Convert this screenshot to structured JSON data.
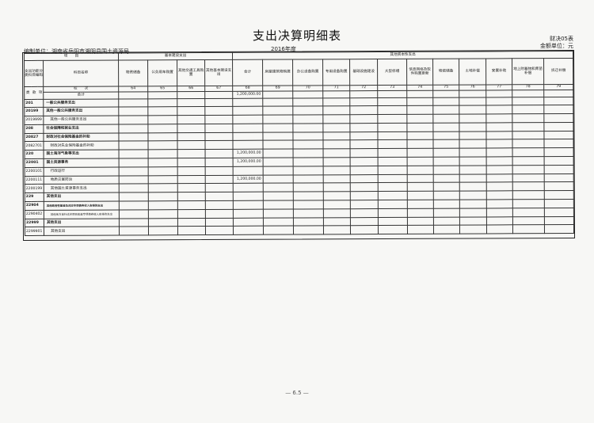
{
  "title": "支出决算明细表",
  "form_no": "财决05表",
  "unit": "金额单位：元",
  "org": "编制单位：湖南省岳阳市湘阴县国土资源局",
  "year": "2016年度",
  "page_number": "— 6.5 —",
  "header": {
    "item": "项　　目",
    "code_label": "支出功能分类科目编码",
    "name_label": "科目名称",
    "group_basic": "基本建设支出",
    "group_other": "其他资本性支出",
    "columns": [
      "物资储备",
      "公务用车购置",
      "其他交通工具购置",
      "其他基本建设支出",
      "合计",
      "房屋建筑物购建",
      "办公设备购置",
      "专用设备购置",
      "基础设施建设",
      "大型修缮",
      "信息网络及软件购置更新",
      "物资储备",
      "土地补偿",
      "安置补助",
      "地上附着物和青苗补偿",
      "拆迁补偿"
    ],
    "col_numbers": [
      "64",
      "65",
      "66",
      "67",
      "68",
      "69",
      "70",
      "71",
      "72",
      "73",
      "74",
      "75",
      "76",
      "77",
      "78",
      "79"
    ],
    "class_labels": [
      "类",
      "款",
      "项"
    ],
    "row_no_label": "栏　　次",
    "total_label": "合计",
    "total_value": "1,200,000.00"
  },
  "rows": [
    {
      "code": "201",
      "name": "一般公共服务支出",
      "bold": true,
      "value": ""
    },
    {
      "code": "20199",
      "name": "其他一般公共服务支出",
      "bold": true,
      "value": ""
    },
    {
      "code": "2019999",
      "name": "其他一般公共服务支出",
      "bold": false,
      "value": ""
    },
    {
      "code": "208",
      "name": "社会保障和就业支出",
      "bold": true,
      "value": ""
    },
    {
      "code": "20827",
      "name": "财政对社会保险基金的补助",
      "bold": true,
      "value": ""
    },
    {
      "code": "2082701",
      "name": "财政对失业保险基金的补助",
      "bold": false,
      "value": ""
    },
    {
      "code": "220",
      "name": "国土海洋气象等支出",
      "bold": true,
      "value": "1,200,000.00"
    },
    {
      "code": "22001",
      "name": "国土资源事务",
      "bold": true,
      "value": "1,200,000.00"
    },
    {
      "code": "2200101",
      "name": "行政运行",
      "bold": false,
      "value": ""
    },
    {
      "code": "2200111",
      "name": "地质灾害防治",
      "bold": false,
      "value": "1,200,000.00"
    },
    {
      "code": "2200199",
      "name": "其他国土资源事务支出",
      "bold": false,
      "value": ""
    },
    {
      "code": "229",
      "name": "其他支出",
      "bold": true,
      "value": ""
    },
    {
      "code": "22904",
      "name": "其他政府性基金及对应专项债务收入安排的支出",
      "bold": true,
      "value": ""
    },
    {
      "code": "2290402",
      "name": "其他地方自行试点项目收益专项债券收入安排的支出",
      "bold": false,
      "value": ""
    },
    {
      "code": "22999",
      "name": "其他支出",
      "bold": true,
      "value": ""
    },
    {
      "code": "2299901",
      "name": "其他支出",
      "bold": false,
      "value": ""
    }
  ]
}
